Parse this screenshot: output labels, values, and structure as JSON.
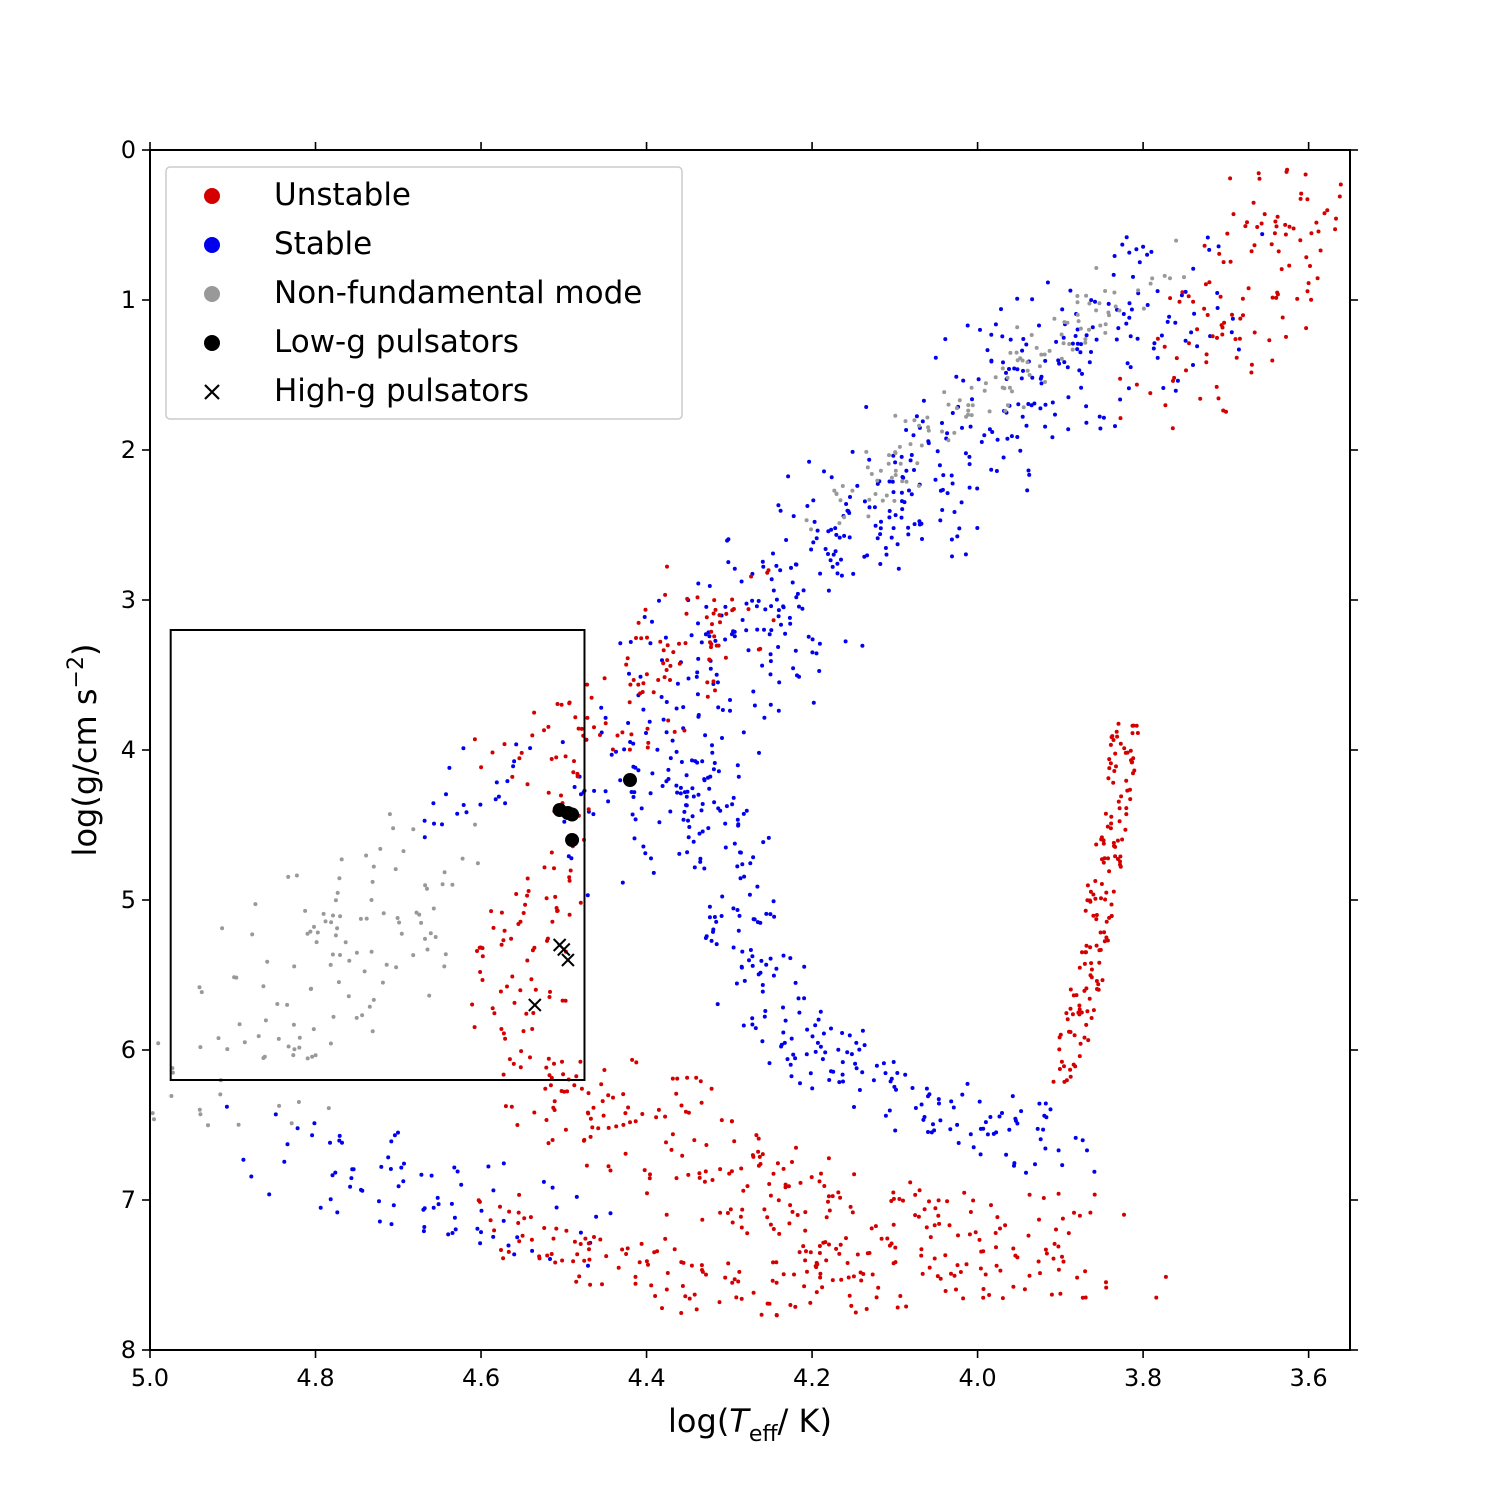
{
  "chart_data": {
    "type": "scatter",
    "title": "",
    "xlabel": "log(T_eff/ K)",
    "xlabel_parts": {
      "prefix": "log(",
      "var": "T",
      "sub": "eff",
      "suffix": "/ K)"
    },
    "ylabel": "log(g/cm s^-2)",
    "ylabel_parts": {
      "prefix": "log(g/cm s",
      "sup": "−2",
      "suffix": ")"
    },
    "xlim": [
      5.0,
      3.55
    ],
    "ylim": [
      8,
      0
    ],
    "xticks": [
      5.0,
      4.8,
      4.6,
      4.4,
      4.2,
      4.0,
      3.8,
      3.6
    ],
    "xtick_labels": [
      "5.0",
      "4.8",
      "4.6",
      "4.4",
      "4.2",
      "4.0",
      "3.8",
      "3.6"
    ],
    "yticks": [
      0,
      1,
      2,
      3,
      4,
      5,
      6,
      7,
      8
    ],
    "ytick_labels": [
      "0",
      "1",
      "2",
      "3",
      "4",
      "5",
      "6",
      "7",
      "8"
    ],
    "grid": false,
    "legend_position": "top-left",
    "colors": {
      "unstable": "#d40000",
      "stable": "#0000ee",
      "nonfund": "#999999",
      "pulsator": "#000000",
      "box": "#000000"
    },
    "legend": [
      {
        "label": "Unstable",
        "marker": "dot",
        "color": "#d40000"
      },
      {
        "label": "Stable",
        "marker": "dot",
        "color": "#0000ee"
      },
      {
        "label": "Non-fundamental mode",
        "marker": "dot",
        "color": "#999999"
      },
      {
        "label": "Low-g pulsators",
        "marker": "dot",
        "color": "#000000"
      },
      {
        "label": "High-g pulsators",
        "marker": "x",
        "color": "#000000"
      }
    ],
    "highlight_box": {
      "x": [
        4.975,
        4.475
      ],
      "y": [
        3.2,
        6.2
      ]
    },
    "low_g_pulsators": [
      {
        "x": 4.42,
        "y": 4.2
      },
      {
        "x": 4.505,
        "y": 4.4
      },
      {
        "x": 4.495,
        "y": 4.42
      },
      {
        "x": 4.49,
        "y": 4.43
      },
      {
        "x": 4.49,
        "y": 4.6
      }
    ],
    "high_g_pulsators": [
      {
        "x": 4.505,
        "y": 5.3
      },
      {
        "x": 4.5,
        "y": 5.33
      },
      {
        "x": 4.495,
        "y": 5.4
      },
      {
        "x": 4.535,
        "y": 5.7
      }
    ],
    "model_regions": [
      {
        "category": "stable",
        "role": "main giant branch",
        "center": [
          [
            3.75,
            0.85
          ],
          [
            3.95,
            1.6
          ],
          [
            4.2,
            2.85
          ],
          [
            4.35,
            3.7
          ],
          [
            4.45,
            4.6
          ]
        ],
        "half_width": 0.1,
        "density": 60
      },
      {
        "category": "nonfund",
        "role": "upper edge of giant branch",
        "center": [
          [
            3.78,
            0.75
          ],
          [
            3.97,
            1.55
          ],
          [
            4.18,
            2.4
          ]
        ],
        "half_width": 0.04,
        "density": 30
      },
      {
        "category": "unstable",
        "role": "cool giant tip",
        "center": [
          [
            3.58,
            0.15
          ],
          [
            3.65,
            0.7
          ],
          [
            3.7,
            1.1
          ],
          [
            3.76,
            1.55
          ]
        ],
        "half_width": 0.08,
        "density": 45
      },
      {
        "category": "unstable",
        "role": "hot giant edge",
        "center": [
          [
            4.28,
            2.9
          ],
          [
            4.4,
            3.55
          ],
          [
            4.55,
            4.2
          ]
        ],
        "half_width": 0.07,
        "density": 40
      },
      {
        "category": "stable",
        "role": "hot stable clump",
        "center": [
          [
            4.57,
            4.05
          ],
          [
            4.65,
            4.45
          ]
        ],
        "half_width": 0.045,
        "density": 24
      },
      {
        "category": "nonfund",
        "role": "hot non-fundamental fan",
        "center": [
          [
            4.65,
            4.8
          ],
          [
            4.75,
            5.3
          ],
          [
            4.85,
            5.8
          ],
          [
            4.93,
            6.3
          ]
        ],
        "half_width": 0.11,
        "density": 40
      },
      {
        "category": "unstable",
        "role": "hot unstable fan",
        "center": [
          [
            4.53,
            4.7
          ],
          [
            4.55,
            5.2
          ],
          [
            4.56,
            5.8
          ],
          [
            4.5,
            6.35
          ]
        ],
        "half_width": 0.06,
        "density": 34
      },
      {
        "category": "stable",
        "role": "blue hook",
        "center": [
          [
            4.36,
            4.0
          ],
          [
            4.3,
            4.7
          ],
          [
            4.28,
            5.4
          ],
          [
            4.2,
            6.0
          ],
          [
            4.05,
            6.4
          ],
          [
            3.9,
            6.65
          ]
        ],
        "half_width": 0.05,
        "density": 40
      },
      {
        "category": "unstable",
        "role": "lower unstable sequence",
        "center": [
          [
            4.5,
            6.2
          ],
          [
            4.35,
            6.7
          ],
          [
            4.2,
            7.1
          ],
          [
            4.05,
            7.3
          ],
          [
            3.85,
            7.3
          ]
        ],
        "half_width": 0.09,
        "density": 46
      },
      {
        "category": "stable",
        "role": "lower stable sequence",
        "center": [
          [
            4.85,
            6.6
          ],
          [
            4.7,
            6.9
          ],
          [
            4.5,
            7.2
          ]
        ],
        "half_width": 0.07,
        "density": 26
      },
      {
        "category": "unstable",
        "role": "cool vertical branch",
        "center": [
          [
            3.82,
            3.8
          ],
          [
            3.84,
            4.6
          ],
          [
            3.86,
            5.3
          ],
          [
            3.88,
            5.9
          ],
          [
            3.9,
            6.2
          ]
        ],
        "half_width": 0.018,
        "density": 42
      },
      {
        "category": "unstable",
        "role": "lower hot tail",
        "center": [
          [
            4.6,
            7.1
          ],
          [
            4.45,
            7.4
          ],
          [
            4.3,
            7.6
          ],
          [
            4.1,
            7.55
          ]
        ],
        "half_width": 0.05,
        "density": 30
      }
    ]
  }
}
